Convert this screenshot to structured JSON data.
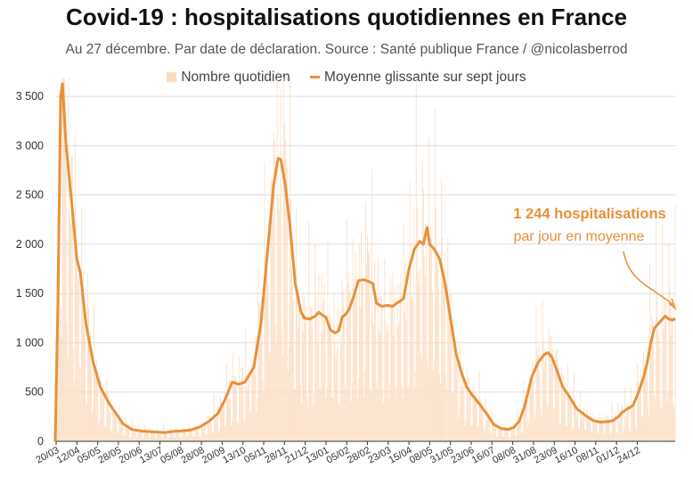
{
  "chart_data": {
    "type": "bar",
    "title": "Covid-19 : hospitalisations quotidiennes en France",
    "subtitle": "Au 27 décembre. Par date de déclaration. Source : Santé publique France / @nicolasberrod",
    "legend": [
      "Nombre quotidien",
      "Moyenne glissante sur sept jours"
    ],
    "ylim": [
      0,
      3700
    ],
    "yticks": [
      0,
      500,
      1000,
      1500,
      2000,
      2500,
      3000,
      3500
    ],
    "ytick_labels": [
      "0",
      "500",
      "1 000",
      "1 500",
      "2 000",
      "2 500",
      "3 000",
      "3 500"
    ],
    "xtick_labels": [
      "20/03",
      "12/04",
      "05/05",
      "28/05",
      "20/06",
      "13/07",
      "05/08",
      "28/08",
      "20/09",
      "13/10",
      "05/11",
      "28/11",
      "21/12",
      "13/01",
      "05/02",
      "28/02",
      "23/03",
      "15/04",
      "08/05",
      "31/05",
      "23/06",
      "16/07",
      "08/08",
      "31/08",
      "23/09",
      "16/10",
      "08/11",
      "01/12",
      "24/12"
    ],
    "series": [
      {
        "name": "Moyenne glissante sur sept jours",
        "type": "line",
        "points": [
          [
            0,
            0
          ],
          [
            3,
            1400
          ],
          [
            6,
            3500
          ],
          [
            8,
            3630
          ],
          [
            12,
            3000
          ],
          [
            18,
            2450
          ],
          [
            24,
            1850
          ],
          [
            28,
            1700
          ],
          [
            34,
            1200
          ],
          [
            42,
            800
          ],
          [
            50,
            550
          ],
          [
            60,
            380
          ],
          [
            75,
            180
          ],
          [
            85,
            120
          ],
          [
            95,
            105
          ],
          [
            110,
            95
          ],
          [
            122,
            90
          ],
          [
            130,
            100
          ],
          [
            140,
            105
          ],
          [
            150,
            115
          ],
          [
            160,
            145
          ],
          [
            170,
            200
          ],
          [
            180,
            280
          ],
          [
            188,
            420
          ],
          [
            196,
            600
          ],
          [
            203,
            580
          ],
          [
            210,
            600
          ],
          [
            220,
            750
          ],
          [
            228,
            1200
          ],
          [
            236,
            2000
          ],
          [
            242,
            2600
          ],
          [
            247,
            2870
          ],
          [
            250,
            2860
          ],
          [
            255,
            2600
          ],
          [
            260,
            2200
          ],
          [
            266,
            1600
          ],
          [
            272,
            1320
          ],
          [
            276,
            1250
          ],
          [
            282,
            1240
          ],
          [
            288,
            1270
          ],
          [
            292,
            1310
          ],
          [
            296,
            1280
          ],
          [
            300,
            1260
          ],
          [
            305,
            1130
          ],
          [
            310,
            1100
          ],
          [
            314,
            1120
          ],
          [
            318,
            1260
          ],
          [
            322,
            1290
          ],
          [
            326,
            1350
          ],
          [
            330,
            1450
          ],
          [
            336,
            1630
          ],
          [
            342,
            1640
          ],
          [
            348,
            1620
          ],
          [
            352,
            1600
          ],
          [
            356,
            1400
          ],
          [
            362,
            1370
          ],
          [
            368,
            1380
          ],
          [
            374,
            1370
          ],
          [
            378,
            1400
          ],
          [
            382,
            1420
          ],
          [
            386,
            1450
          ],
          [
            392,
            1750
          ],
          [
            398,
            1950
          ],
          [
            404,
            2030
          ],
          [
            408,
            2000
          ],
          [
            412,
            2170
          ],
          [
            415,
            2000
          ],
          [
            420,
            1950
          ],
          [
            426,
            1850
          ],
          [
            432,
            1600
          ],
          [
            438,
            1250
          ],
          [
            444,
            900
          ],
          [
            450,
            700
          ],
          [
            456,
            550
          ],
          [
            462,
            470
          ],
          [
            470,
            380
          ],
          [
            478,
            280
          ],
          [
            486,
            170
          ],
          [
            494,
            130
          ],
          [
            502,
            120
          ],
          [
            508,
            140
          ],
          [
            514,
            200
          ],
          [
            520,
            350
          ],
          [
            528,
            650
          ],
          [
            535,
            800
          ],
          [
            542,
            880
          ],
          [
            546,
            900
          ],
          [
            550,
            860
          ],
          [
            556,
            720
          ],
          [
            562,
            560
          ],
          [
            570,
            450
          ],
          [
            578,
            330
          ],
          [
            588,
            260
          ],
          [
            596,
            210
          ],
          [
            604,
            195
          ],
          [
            612,
            200
          ],
          [
            618,
            210
          ],
          [
            624,
            250
          ],
          [
            628,
            290
          ],
          [
            634,
            330
          ],
          [
            640,
            360
          ],
          [
            646,
            490
          ],
          [
            652,
            650
          ],
          [
            656,
            800
          ],
          [
            660,
            1000
          ],
          [
            664,
            1150
          ],
          [
            668,
            1190
          ],
          [
            672,
            1230
          ],
          [
            676,
            1270
          ],
          [
            680,
            1240
          ],
          [
            684,
            1230
          ],
          [
            687,
            1244
          ]
        ]
      }
    ],
    "bars_description": "daily counts per day from 20/03 to 27/12, ~688 days",
    "annotation": {
      "line1": "1 244 hospitalisations",
      "line2": "par jour en moyenne",
      "value": 1244
    },
    "colors": {
      "bar": "#fbdcc0",
      "line": "#e8903a",
      "grid": "#dddddd",
      "axis": "#333333"
    }
  }
}
